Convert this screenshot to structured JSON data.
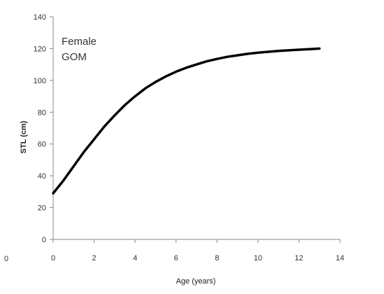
{
  "chart_data": {
    "type": "line",
    "xlabel": "Age (years)",
    "ylabel": "STL (cm)",
    "xlim": [
      0,
      14
    ],
    "ylim": [
      0,
      140
    ],
    "x_ticks": [
      0,
      2,
      4,
      6,
      8,
      10,
      12,
      14
    ],
    "y_ticks": [
      0,
      20,
      40,
      60,
      80,
      100,
      120,
      140
    ],
    "stray_label": "0",
    "annotations": [
      "Female",
      "GOM"
    ],
    "grid": false,
    "legend": "none",
    "series": [
      {
        "color": "#000000",
        "x": [
          0,
          0.5,
          1,
          1.5,
          2,
          2.5,
          3,
          3.5,
          4,
          4.5,
          5,
          5.5,
          6,
          6.5,
          7,
          7.5,
          8,
          8.5,
          9,
          9.5,
          10,
          10.5,
          11,
          11.5,
          12,
          12.5,
          13
        ],
        "y": [
          29,
          37,
          46,
          55,
          63,
          71,
          78,
          84.5,
          90,
          95,
          99,
          102.5,
          105.5,
          108,
          110,
          112,
          113.5,
          114.8,
          115.8,
          116.7,
          117.4,
          118,
          118.5,
          118.9,
          119.3,
          119.6,
          120
        ]
      }
    ]
  }
}
